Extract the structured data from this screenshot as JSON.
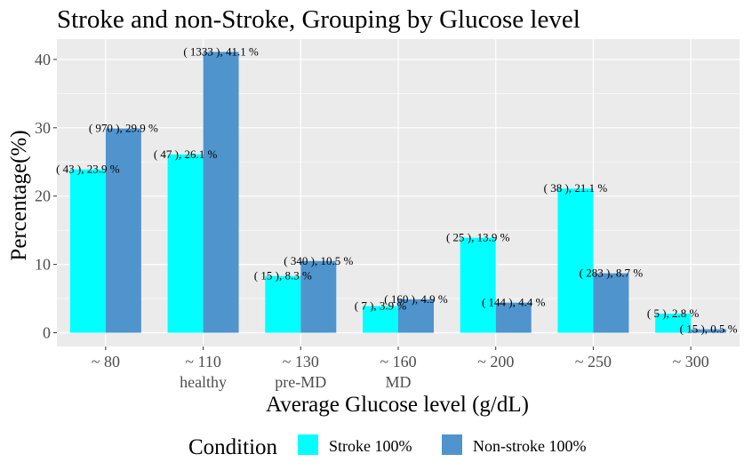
{
  "chart_data": {
    "type": "bar",
    "title": "Stroke and non-Stroke, Grouping by Glucose level",
    "xlabel": "Average Glucose level (g/dL)",
    "ylabel": "Percentage(%)",
    "ylim": [
      0,
      43
    ],
    "y_ticks": [
      0,
      10,
      20,
      30,
      40
    ],
    "grid": true,
    "categories": [
      "~ 80",
      "~ 110",
      "~ 130",
      "~ 160",
      "~ 200",
      "~ 250",
      "~ 300"
    ],
    "category_sublabels": [
      "",
      "healthy",
      "pre-MD",
      "MD",
      "",
      "",
      ""
    ],
    "series": [
      {
        "name": "Stroke 100%",
        "color": "#00FFFF",
        "values": [
          23.9,
          26.1,
          8.3,
          3.9,
          13.9,
          21.1,
          2.8
        ],
        "labels": [
          "( 43 ), 23.9 %",
          "( 47 ), 26.1 %",
          "( 15 ), 8.3 %",
          "( 7 ), 3.9 %",
          "( 25 ), 13.9 %",
          "( 38 ), 21.1 %",
          "( 5 ), 2.8 %"
        ]
      },
      {
        "name": "Non-stroke 100%",
        "color": "#4F94CD",
        "values": [
          29.9,
          41.1,
          10.5,
          4.9,
          4.4,
          8.7,
          0.5
        ],
        "labels": [
          "( 970 ), 29.9 %",
          "( 1333 ), 41.1 %",
          "( 340 ), 10.5 %",
          "( 160 ), 4.9 %",
          "( 144 ), 4.4 %",
          "( 283 ), 8.7 %",
          "( 15 ), 0.5 %"
        ]
      }
    ],
    "legend": {
      "title": "Condition",
      "position": "bottom"
    }
  }
}
